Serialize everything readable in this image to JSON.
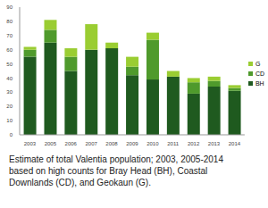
{
  "chart_data": {
    "type": "bar",
    "stacked": true,
    "grid": false,
    "legend": "right",
    "caption": "Estimate of total Valentia population; 2003, 2005-2014 based on high counts for Bray Head (BH), Coastal Downlands (CD), and Geokaun (G).",
    "categories": [
      "2003",
      "2005",
      "2006",
      "2007",
      "2008",
      "2009",
      "2010",
      "2011",
      "2012",
      "2013",
      "2014"
    ],
    "series": [
      {
        "name": "BH",
        "color": "#1f5a1f",
        "values": [
          55,
          65,
          45,
          60,
          61,
          42,
          39,
          41,
          29,
          34,
          31
        ]
      },
      {
        "name": "CD",
        "color": "#4f9a2c",
        "values": [
          5,
          9,
          10,
          0,
          0,
          6,
          28,
          0,
          8,
          4,
          2
        ]
      },
      {
        "name": "G",
        "color": "#9acd32",
        "values": [
          2,
          7,
          6,
          18,
          4,
          7,
          5,
          4,
          3,
          3,
          2
        ]
      }
    ],
    "ylim": [
      0,
      90
    ],
    "yticks": [
      0,
      10,
      20,
      30,
      40,
      50,
      60,
      70,
      80,
      90
    ]
  }
}
